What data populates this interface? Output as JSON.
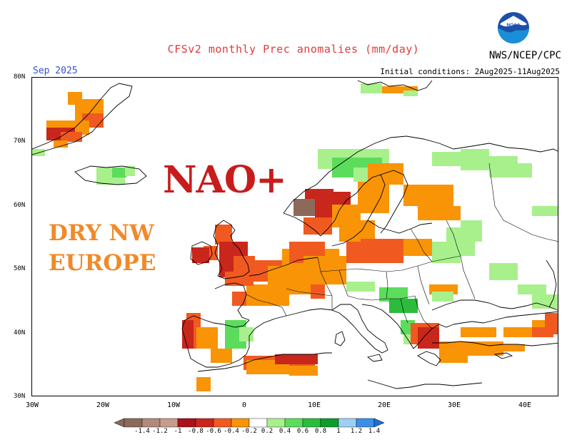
{
  "header": {
    "title": "CFSv2 monthly Prec anomalies (mm/day)",
    "org": "NWS/NCEP/CPC",
    "month": "Sep 2025",
    "init": "Initial conditions: 2Aug2025-11Aug2025"
  },
  "annotations": {
    "nao": "NAO+",
    "dry_line1": "DRY NW",
    "dry_line2": "EUROPE"
  },
  "axes": {
    "lat_labels": [
      "80N",
      "70N",
      "60N",
      "50N",
      "40N",
      "30N"
    ],
    "lon_labels": [
      "30W",
      "20W",
      "10W",
      "0",
      "10E",
      "20E",
      "30E",
      "40E"
    ]
  },
  "colorbar": {
    "labels": [
      "-1.4",
      "-1.2",
      "-1",
      "-0.8",
      "-0.6",
      "-0.4",
      "-0.2",
      "0.2",
      "0.4",
      "0.6",
      "0.8",
      "1",
      "1.2",
      "1.4"
    ],
    "colors": [
      "#8b6a5a",
      "#b08a7c",
      "#c89c8c",
      "#a8121a",
      "#c9261c",
      "#f05a20",
      "#f89406",
      "#ffffff",
      "#a8f08c",
      "#5cdc5c",
      "#2cbc3c",
      "#0e9c2c",
      "#9ccff6",
      "#3b8fe6"
    ]
  },
  "map": {
    "region": "Europe",
    "lon_range": [
      -30,
      45
    ],
    "lat_range": [
      30,
      80
    ],
    "anomaly_colors": {
      "dry_strong": "#c9261c",
      "dry_moderate": "#f05a20",
      "dry_weak": "#f89406",
      "wet_weak": "#a8f08c",
      "wet_moderate": "#5cdc5c",
      "wet_strong": "#2cbc3c",
      "wet_vstrong": "#0e9c2c",
      "very_dry": "#8b6a5a",
      "brown_light": "#b08a7c"
    }
  }
}
